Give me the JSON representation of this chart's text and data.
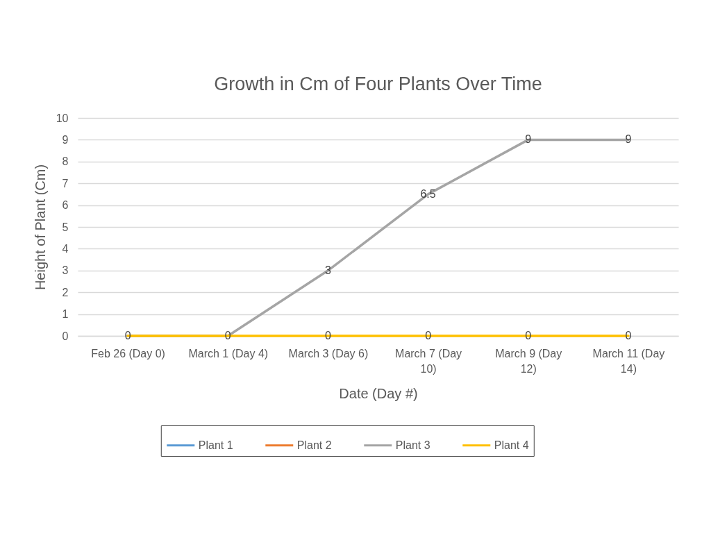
{
  "chart_data": {
    "type": "line",
    "title": "Growth in Cm of Four Plants Over Time",
    "xlabel": "Date (Day #)",
    "ylabel": "Height of Plant (Cm)",
    "categories": [
      "Feb 26 (Day 0)",
      "March 1 (Day 4)",
      "March 3 (Day 6)",
      "March 7 (Day 10)",
      "March 9 (Day 12)",
      "March 11 (Day 14)"
    ],
    "series": [
      {
        "name": "Plant 1",
        "color": "#5b9bd5",
        "values": [
          null,
          null,
          null,
          null,
          null,
          null
        ]
      },
      {
        "name": "Plant 2",
        "color": "#ed7d31",
        "values": [
          null,
          null,
          null,
          null,
          null,
          null
        ]
      },
      {
        "name": "Plant 3",
        "color": "#a5a5a5",
        "values": [
          0,
          0,
          3,
          6.5,
          9,
          9
        ],
        "value_labels": [
          null,
          null,
          "3",
          "6.5",
          "9",
          "9"
        ]
      },
      {
        "name": "Plant 4",
        "color": "#ffc000",
        "values": [
          0,
          0,
          0,
          0,
          0,
          0
        ],
        "value_labels": [
          "0",
          "0",
          "0",
          "0",
          "0",
          "0"
        ]
      }
    ],
    "ylim": [
      0,
      10
    ],
    "yticks": [
      0,
      1,
      2,
      3,
      4,
      5,
      6,
      7,
      8,
      9,
      10
    ],
    "grid": "y",
    "legend": "bottom"
  }
}
